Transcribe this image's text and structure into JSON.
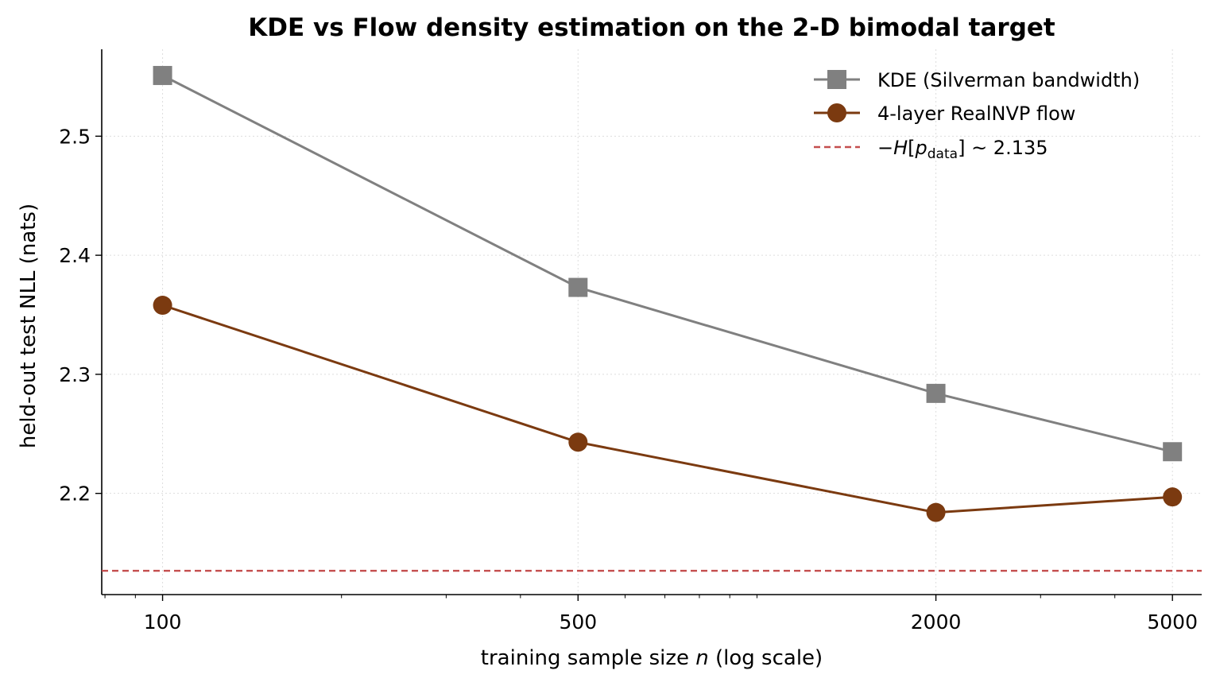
{
  "chart_data": {
    "type": "line",
    "title": "KDE vs Flow density estimation on the 2-D bimodal target",
    "xlabel": "training sample size n (log scale)",
    "ylabel": "held-out test NLL (nats)",
    "x_scale": "log",
    "x": [
      100,
      500,
      2000,
      5000
    ],
    "xlim": [
      79,
      5600
    ],
    "ylim": [
      2.115,
      2.573
    ],
    "x_ticks": [
      100,
      500,
      2000,
      5000
    ],
    "x_tick_labels": [
      "100",
      "500",
      "2000",
      "5000"
    ],
    "y_ticks": [
      2.2,
      2.3,
      2.4,
      2.5
    ],
    "y_tick_labels": [
      "2.2",
      "2.3",
      "2.4",
      "2.5"
    ],
    "grid": true,
    "legend_position": "top-right",
    "series": [
      {
        "name": "KDE (Silverman bandwidth)",
        "values": [
          2.551,
          2.373,
          2.284,
          2.235
        ],
        "color": "#808080",
        "marker": "square"
      },
      {
        "name": "4-layer RealNVP flow",
        "values": [
          2.358,
          2.243,
          2.184,
          2.197
        ],
        "color": "#7b3a10",
        "marker": "circle"
      }
    ],
    "reference_line": {
      "label": "−H[p_data] ~ 2.135",
      "value": 2.135,
      "color": "#c44e4e",
      "style": "dashed"
    }
  }
}
